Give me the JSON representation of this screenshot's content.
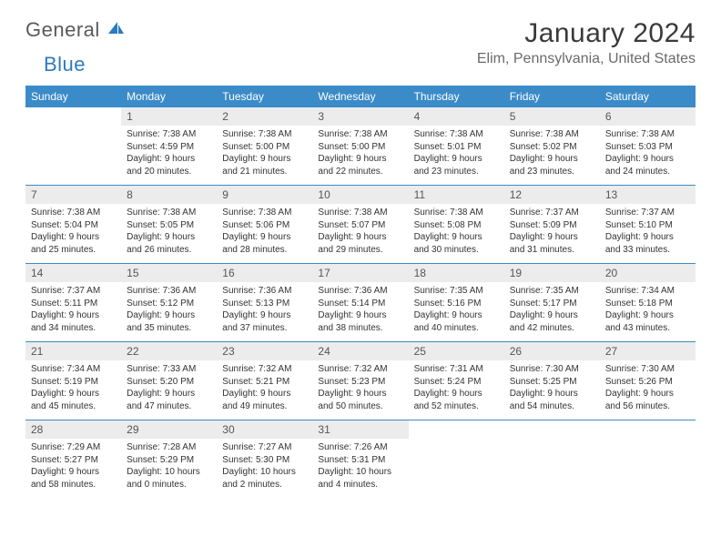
{
  "brand": {
    "name_a": "General",
    "name_b": "Blue"
  },
  "title": "January 2024",
  "location": "Elim, Pennsylvania, United States",
  "colors": {
    "header_bg": "#3b8bc9",
    "header_text": "#ffffff",
    "daynum_bg": "#ececec",
    "daynum_text": "#555555",
    "body_text": "#333333",
    "rule": "#3b8bc9",
    "brand_gray": "#5a5a5a",
    "brand_blue": "#2b7bbf",
    "page_bg": "#ffffff"
  },
  "typography": {
    "title_size": 30,
    "location_size": 16,
    "header_size": 12,
    "cell_size": 10
  },
  "weekdays": [
    "Sunday",
    "Monday",
    "Tuesday",
    "Wednesday",
    "Thursday",
    "Friday",
    "Saturday"
  ],
  "weeks": [
    {
      "days": [
        {
          "num": "",
          "sunrise": "",
          "sunset": "",
          "daylight": ""
        },
        {
          "num": "1",
          "sunrise": "Sunrise: 7:38 AM",
          "sunset": "Sunset: 4:59 PM",
          "daylight": "Daylight: 9 hours and 20 minutes."
        },
        {
          "num": "2",
          "sunrise": "Sunrise: 7:38 AM",
          "sunset": "Sunset: 5:00 PM",
          "daylight": "Daylight: 9 hours and 21 minutes."
        },
        {
          "num": "3",
          "sunrise": "Sunrise: 7:38 AM",
          "sunset": "Sunset: 5:00 PM",
          "daylight": "Daylight: 9 hours and 22 minutes."
        },
        {
          "num": "4",
          "sunrise": "Sunrise: 7:38 AM",
          "sunset": "Sunset: 5:01 PM",
          "daylight": "Daylight: 9 hours and 23 minutes."
        },
        {
          "num": "5",
          "sunrise": "Sunrise: 7:38 AM",
          "sunset": "Sunset: 5:02 PM",
          "daylight": "Daylight: 9 hours and 23 minutes."
        },
        {
          "num": "6",
          "sunrise": "Sunrise: 7:38 AM",
          "sunset": "Sunset: 5:03 PM",
          "daylight": "Daylight: 9 hours and 24 minutes."
        }
      ]
    },
    {
      "days": [
        {
          "num": "7",
          "sunrise": "Sunrise: 7:38 AM",
          "sunset": "Sunset: 5:04 PM",
          "daylight": "Daylight: 9 hours and 25 minutes."
        },
        {
          "num": "8",
          "sunrise": "Sunrise: 7:38 AM",
          "sunset": "Sunset: 5:05 PM",
          "daylight": "Daylight: 9 hours and 26 minutes."
        },
        {
          "num": "9",
          "sunrise": "Sunrise: 7:38 AM",
          "sunset": "Sunset: 5:06 PM",
          "daylight": "Daylight: 9 hours and 28 minutes."
        },
        {
          "num": "10",
          "sunrise": "Sunrise: 7:38 AM",
          "sunset": "Sunset: 5:07 PM",
          "daylight": "Daylight: 9 hours and 29 minutes."
        },
        {
          "num": "11",
          "sunrise": "Sunrise: 7:38 AM",
          "sunset": "Sunset: 5:08 PM",
          "daylight": "Daylight: 9 hours and 30 minutes."
        },
        {
          "num": "12",
          "sunrise": "Sunrise: 7:37 AM",
          "sunset": "Sunset: 5:09 PM",
          "daylight": "Daylight: 9 hours and 31 minutes."
        },
        {
          "num": "13",
          "sunrise": "Sunrise: 7:37 AM",
          "sunset": "Sunset: 5:10 PM",
          "daylight": "Daylight: 9 hours and 33 minutes."
        }
      ]
    },
    {
      "days": [
        {
          "num": "14",
          "sunrise": "Sunrise: 7:37 AM",
          "sunset": "Sunset: 5:11 PM",
          "daylight": "Daylight: 9 hours and 34 minutes."
        },
        {
          "num": "15",
          "sunrise": "Sunrise: 7:36 AM",
          "sunset": "Sunset: 5:12 PM",
          "daylight": "Daylight: 9 hours and 35 minutes."
        },
        {
          "num": "16",
          "sunrise": "Sunrise: 7:36 AM",
          "sunset": "Sunset: 5:13 PM",
          "daylight": "Daylight: 9 hours and 37 minutes."
        },
        {
          "num": "17",
          "sunrise": "Sunrise: 7:36 AM",
          "sunset": "Sunset: 5:14 PM",
          "daylight": "Daylight: 9 hours and 38 minutes."
        },
        {
          "num": "18",
          "sunrise": "Sunrise: 7:35 AM",
          "sunset": "Sunset: 5:16 PM",
          "daylight": "Daylight: 9 hours and 40 minutes."
        },
        {
          "num": "19",
          "sunrise": "Sunrise: 7:35 AM",
          "sunset": "Sunset: 5:17 PM",
          "daylight": "Daylight: 9 hours and 42 minutes."
        },
        {
          "num": "20",
          "sunrise": "Sunrise: 7:34 AM",
          "sunset": "Sunset: 5:18 PM",
          "daylight": "Daylight: 9 hours and 43 minutes."
        }
      ]
    },
    {
      "days": [
        {
          "num": "21",
          "sunrise": "Sunrise: 7:34 AM",
          "sunset": "Sunset: 5:19 PM",
          "daylight": "Daylight: 9 hours and 45 minutes."
        },
        {
          "num": "22",
          "sunrise": "Sunrise: 7:33 AM",
          "sunset": "Sunset: 5:20 PM",
          "daylight": "Daylight: 9 hours and 47 minutes."
        },
        {
          "num": "23",
          "sunrise": "Sunrise: 7:32 AM",
          "sunset": "Sunset: 5:21 PM",
          "daylight": "Daylight: 9 hours and 49 minutes."
        },
        {
          "num": "24",
          "sunrise": "Sunrise: 7:32 AM",
          "sunset": "Sunset: 5:23 PM",
          "daylight": "Daylight: 9 hours and 50 minutes."
        },
        {
          "num": "25",
          "sunrise": "Sunrise: 7:31 AM",
          "sunset": "Sunset: 5:24 PM",
          "daylight": "Daylight: 9 hours and 52 minutes."
        },
        {
          "num": "26",
          "sunrise": "Sunrise: 7:30 AM",
          "sunset": "Sunset: 5:25 PM",
          "daylight": "Daylight: 9 hours and 54 minutes."
        },
        {
          "num": "27",
          "sunrise": "Sunrise: 7:30 AM",
          "sunset": "Sunset: 5:26 PM",
          "daylight": "Daylight: 9 hours and 56 minutes."
        }
      ]
    },
    {
      "days": [
        {
          "num": "28",
          "sunrise": "Sunrise: 7:29 AM",
          "sunset": "Sunset: 5:27 PM",
          "daylight": "Daylight: 9 hours and 58 minutes."
        },
        {
          "num": "29",
          "sunrise": "Sunrise: 7:28 AM",
          "sunset": "Sunset: 5:29 PM",
          "daylight": "Daylight: 10 hours and 0 minutes."
        },
        {
          "num": "30",
          "sunrise": "Sunrise: 7:27 AM",
          "sunset": "Sunset: 5:30 PM",
          "daylight": "Daylight: 10 hours and 2 minutes."
        },
        {
          "num": "31",
          "sunrise": "Sunrise: 7:26 AM",
          "sunset": "Sunset: 5:31 PM",
          "daylight": "Daylight: 10 hours and 4 minutes."
        },
        {
          "num": "",
          "sunrise": "",
          "sunset": "",
          "daylight": ""
        },
        {
          "num": "",
          "sunrise": "",
          "sunset": "",
          "daylight": ""
        },
        {
          "num": "",
          "sunrise": "",
          "sunset": "",
          "daylight": ""
        }
      ]
    }
  ]
}
